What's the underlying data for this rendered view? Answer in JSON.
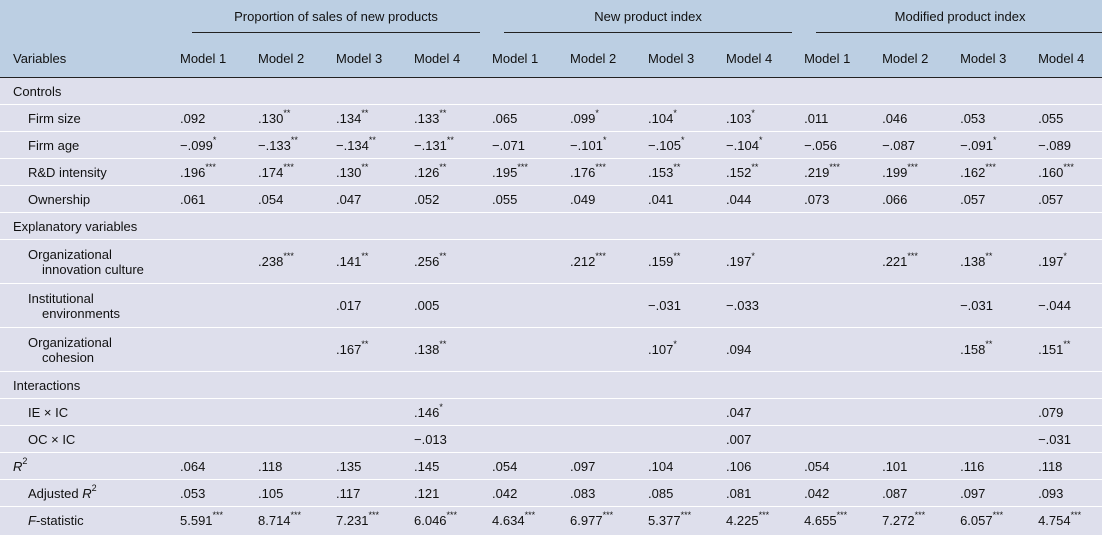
{
  "header": {
    "variables_label": "Variables",
    "groups": [
      "Proportion of sales of new products",
      "New product index",
      "Modified product index"
    ],
    "models": [
      "Model 1",
      "Model 2",
      "Model 3",
      "Model 4",
      "Model 1",
      "Model 2",
      "Model 3",
      "Model 4",
      "Model 1",
      "Model 2",
      "Model 3",
      "Model 4"
    ]
  },
  "rows": {
    "controls": "Controls",
    "firm_size": {
      "label": "Firm size",
      "cells": [
        ".092",
        ".130",
        ".134",
        ".133",
        ".065",
        ".099",
        ".104",
        ".103",
        ".011",
        ".046",
        ".053",
        ".055"
      ],
      "sup": [
        "",
        "**",
        "**",
        "**",
        "",
        "*",
        "*",
        "*",
        "",
        "",
        "",
        ""
      ]
    },
    "firm_age": {
      "label": "Firm age",
      "cells": [
        "−.099",
        "−.133",
        "−.134",
        "−.131",
        "−.071",
        "−.101",
        "−.105",
        "−.104",
        "−.056",
        "−.087",
        "−.091",
        "−.089"
      ],
      "sup": [
        "*",
        "**",
        "**",
        "**",
        "",
        "*",
        "*",
        "*",
        "",
        "",
        "*",
        ""
      ]
    },
    "rd_intensity": {
      "label": "R&D intensity",
      "cells": [
        ".196",
        ".174",
        ".130",
        ".126",
        ".195",
        ".176",
        ".153",
        ".152",
        ".219",
        ".199",
        ".162",
        ".160"
      ],
      "sup": [
        "***",
        "***",
        "**",
        "**",
        "***",
        "***",
        "**",
        "**",
        "***",
        "***",
        "***",
        "***"
      ]
    },
    "ownership": {
      "label": "Ownership",
      "cells": [
        ".061",
        ".054",
        ".047",
        ".052",
        ".055",
        ".049",
        ".041",
        ".044",
        ".073",
        ".066",
        ".057",
        ".057"
      ],
      "sup": [
        "",
        "",
        "",
        "",
        "",
        "",
        "",
        "",
        "",
        "",
        "",
        ""
      ]
    },
    "explanatory": "Explanatory variables",
    "org_culture": {
      "label1": "Organizational",
      "label2": "innovation culture",
      "cells": [
        "",
        ".238",
        ".141",
        ".256",
        "",
        ".212",
        ".159",
        ".197",
        "",
        ".221",
        ".138",
        ".197"
      ],
      "sup": [
        "",
        "***",
        "**",
        "**",
        "",
        "***",
        "**",
        "*",
        "",
        "***",
        "**",
        "*"
      ]
    },
    "inst_env": {
      "label1": "Institutional",
      "label2": "environments",
      "cells": [
        "",
        "",
        ".017",
        ".005",
        "",
        "",
        "−.031",
        "−.033",
        "",
        "",
        "−.031",
        "−.044"
      ],
      "sup": [
        "",
        "",
        "",
        "",
        "",
        "",
        "",
        "",
        "",
        "",
        "",
        ""
      ]
    },
    "org_cohesion": {
      "label1": "Organizational",
      "label2": "cohesion",
      "cells": [
        "",
        "",
        ".167",
        ".138",
        "",
        "",
        ".107",
        ".094",
        "",
        "",
        ".158",
        ".151"
      ],
      "sup": [
        "",
        "",
        "**",
        "**",
        "",
        "",
        "*",
        "",
        "",
        "",
        "**",
        "**"
      ]
    },
    "interactions": "Interactions",
    "ie_ic": {
      "label": "IE × IC",
      "cells": [
        "",
        "",
        "",
        ".146",
        "",
        "",
        "",
        ".047",
        "",
        "",
        "",
        ".079"
      ],
      "sup": [
        "",
        "",
        "",
        "*",
        "",
        "",
        "",
        "",
        "",
        "",
        "",
        ""
      ]
    },
    "oc_ic": {
      "label": "OC × IC",
      "cells": [
        "",
        "",
        "",
        "−.013",
        "",
        "",
        "",
        ".007",
        "",
        "",
        "",
        "−.031"
      ],
      "sup": [
        "",
        "",
        "",
        "",
        "",
        "",
        "",
        "",
        "",
        "",
        "",
        ""
      ]
    },
    "r2": {
      "label_main": "R",
      "label_sup": "2",
      "cells": [
        ".064",
        ".118",
        ".135",
        ".145",
        ".054",
        ".097",
        ".104",
        ".106",
        ".054",
        ".101",
        ".116",
        ".118"
      ],
      "sup": [
        "",
        "",
        "",
        "",
        "",
        "",
        "",
        "",
        "",
        "",
        "",
        ""
      ]
    },
    "adj_r2": {
      "label_main": "Adjusted ",
      "label_it": "R",
      "label_sup": "2",
      "cells": [
        ".053",
        ".105",
        ".117",
        ".121",
        ".042",
        ".083",
        ".085",
        ".081",
        ".042",
        ".087",
        ".097",
        ".093"
      ],
      "sup": [
        "",
        "",
        "",
        "",
        "",
        "",
        "",
        "",
        "",
        "",
        "",
        ""
      ]
    },
    "f_stat": {
      "label_it": "F",
      "label_rest": "-statistic",
      "cells": [
        "5.591",
        "8.714",
        "7.231",
        "6.046",
        "4.634",
        "6.977",
        "5.377",
        "4.225",
        "4.655",
        "7.272",
        "6.057",
        "4.754"
      ],
      "sup": [
        "***",
        "***",
        "***",
        "***",
        "***",
        "***",
        "***",
        "***",
        "***",
        "***",
        "***",
        "***"
      ]
    }
  }
}
